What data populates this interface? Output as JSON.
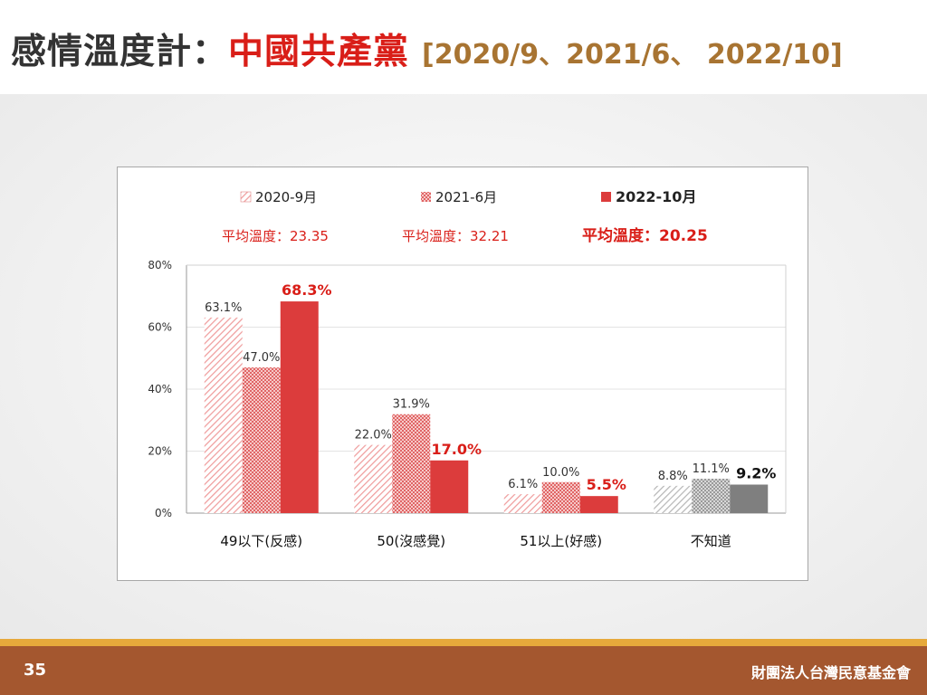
{
  "title": {
    "prefix": "感情溫度計：",
    "subject": "中國共產黨",
    "dates": "[2020/9、2021/6、 2022/10]"
  },
  "footer": {
    "page_number": "35",
    "org_name": "財團法人台灣民意基金會"
  },
  "colors": {
    "title_dark": "#333333",
    "title_red": "#d91e18",
    "title_brown": "#a87432",
    "series_2020": "#ef9a9a",
    "series_2021": "#e06565",
    "series_2022": "#dc3c3c",
    "unknown_2020": "#c8c8c8",
    "unknown_2021": "#a8a8a8",
    "unknown_2022": "#7f7f7f",
    "footer_bg": "#a4572f",
    "footer_line": "#e6a93b"
  },
  "chart_data": {
    "type": "bar",
    "categories": [
      "49以下(反感)",
      "50(沒感覺)",
      "51以上(好感)",
      "不知道"
    ],
    "series": [
      {
        "name": "2020-9月",
        "average_label": "平均溫度：23.35",
        "values": [
          63.1,
          22.0,
          6.1,
          8.8
        ],
        "labels": [
          "63.1%",
          "22.0%",
          "6.1%",
          "8.8%"
        ]
      },
      {
        "name": "2021-6月",
        "average_label": "平均溫度：32.21",
        "values": [
          47.0,
          31.9,
          10.0,
          11.1
        ],
        "labels": [
          "47.0%",
          "31.9%",
          "10.0%",
          "11.1%"
        ]
      },
      {
        "name": "2022-10月",
        "average_label": "平均溫度：20.25",
        "values": [
          68.3,
          17.0,
          5.5,
          9.2
        ],
        "labels": [
          "68.3%",
          "17.0%",
          "5.5%",
          "9.2%"
        ]
      }
    ],
    "y_ticks": [
      "0%",
      "20%",
      "40%",
      "60%",
      "80%"
    ],
    "y_tick_values": [
      0,
      20,
      40,
      60,
      80
    ],
    "ylim": [
      0,
      80
    ],
    "grid": true,
    "legend_position": "top"
  }
}
